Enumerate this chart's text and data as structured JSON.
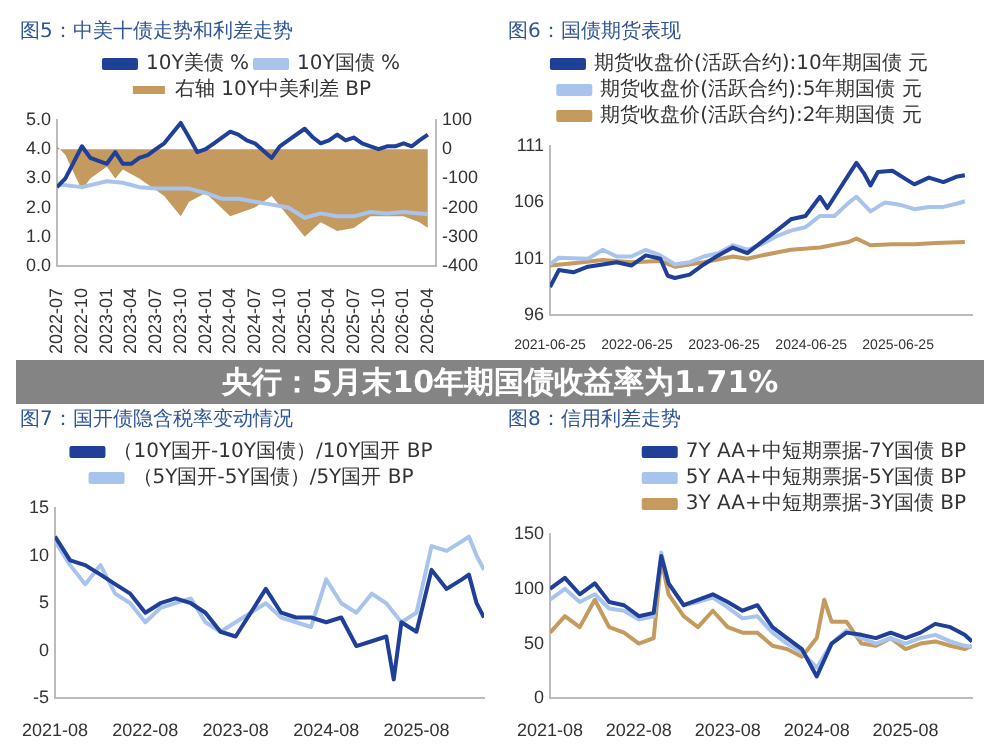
{
  "chart_data": [
    {
      "type": "line",
      "title": "图5：中美十债走势和利差走势",
      "legend": "top",
      "marker": "none",
      "line_style": "solid",
      "grid": false,
      "xlim": [
        "2022-07",
        "2026-05"
      ],
      "xticks": [
        "2022-07",
        "2022-10",
        "2023-01",
        "2023-04",
        "2023-07",
        "2023-10",
        "2024-01",
        "2024-04",
        "2024-07",
        "2024-10",
        "2025-01",
        "2025-04",
        "2025-07",
        "2025-10",
        "2026-01",
        "2026-04"
      ],
      "ylim": [
        0,
        5
      ],
      "yticks": [
        {
          "value": 0,
          "label": "0.0"
        },
        {
          "value": 1,
          "label": "1.0"
        },
        {
          "value": 2,
          "label": "2.0"
        },
        {
          "value": 3,
          "label": "3.0"
        },
        {
          "value": 4,
          "label": "4.0"
        },
        {
          "value": 5,
          "label": "5.0"
        }
      ],
      "y2lim": [
        -400,
        100
      ],
      "y2ticks": [
        -400,
        -300,
        -200,
        -100,
        0,
        100
      ],
      "series": [
        {
          "name": "右轴 10Y中美利差 BP",
          "type": "area",
          "axis": "y2",
          "color": "#c49a5e",
          "x": [
            "2022-07",
            "2022-08",
            "2022-10",
            "2022-11",
            "2023-01",
            "2023-02",
            "2023-03",
            "2023-05",
            "2023-07",
            "2023-08",
            "2023-10",
            "2023-11",
            "2024-01",
            "2024-04",
            "2024-07",
            "2024-09",
            "2024-11",
            "2025-01",
            "2025-03",
            "2025-05",
            "2025-07",
            "2025-09",
            "2025-11",
            "2026-01",
            "2026-03",
            "2026-04"
          ],
          "values": [
            10,
            -20,
            -140,
            -100,
            -60,
            -100,
            -70,
            -100,
            -140,
            -160,
            -230,
            -180,
            -150,
            -230,
            -200,
            -160,
            -230,
            -300,
            -250,
            -280,
            -270,
            -230,
            -230,
            -230,
            -250,
            -270
          ]
        },
        {
          "name": "10Y美债 %",
          "color": "#1f3f99",
          "x": [
            "2022-07",
            "2022-08",
            "2022-10",
            "2022-11",
            "2022-12",
            "2023-01",
            "2023-02",
            "2023-03",
            "2023-04",
            "2023-05",
            "2023-06",
            "2023-07",
            "2023-08",
            "2023-10",
            "2023-11",
            "2023-12",
            "2024-01",
            "2024-02",
            "2024-04",
            "2024-05",
            "2024-06",
            "2024-07",
            "2024-09",
            "2024-10",
            "2024-11",
            "2025-01",
            "2025-02",
            "2025-03",
            "2025-04",
            "2025-05",
            "2025-06",
            "2025-07",
            "2025-08",
            "2025-09",
            "2025-10",
            "2025-11",
            "2025-12",
            "2026-01",
            "2026-02",
            "2026-03",
            "2026-04"
          ],
          "values": [
            2.7,
            3.0,
            4.1,
            3.7,
            3.6,
            3.5,
            3.9,
            3.5,
            3.5,
            3.7,
            3.8,
            4.0,
            4.2,
            4.9,
            4.4,
            3.9,
            4.0,
            4.2,
            4.6,
            4.5,
            4.3,
            4.2,
            3.7,
            4.1,
            4.3,
            4.7,
            4.4,
            4.2,
            4.3,
            4.5,
            4.3,
            4.4,
            4.2,
            4.1,
            4.0,
            4.1,
            4.1,
            4.2,
            4.1,
            4.3,
            4.5
          ]
        },
        {
          "name": "10Y国债 %",
          "color": "#a9c4ec",
          "x": [
            "2022-07",
            "2022-10",
            "2023-01",
            "2023-03",
            "2023-05",
            "2023-07",
            "2023-09",
            "2023-11",
            "2024-01",
            "2024-03",
            "2024-05",
            "2024-07",
            "2024-09",
            "2024-11",
            "2025-01",
            "2025-03",
            "2025-05",
            "2025-07",
            "2025-09",
            "2025-11",
            "2026-01",
            "2026-03",
            "2026-04"
          ],
          "values": [
            2.8,
            2.7,
            2.9,
            2.85,
            2.7,
            2.65,
            2.65,
            2.65,
            2.5,
            2.3,
            2.3,
            2.2,
            2.1,
            2.0,
            1.65,
            1.8,
            1.7,
            1.7,
            1.85,
            1.8,
            1.85,
            1.8,
            1.78
          ]
        }
      ]
    },
    {
      "type": "line",
      "title": "图6：国债期货表现",
      "legend": "top",
      "marker": "none",
      "line_style": "solid",
      "grid": false,
      "xlim": [
        "2021-06-25",
        "2026-05-01"
      ],
      "xticks": [
        "2021-06-25",
        "2022-06-25",
        "2023-06-25",
        "2024-06-25",
        "2025-06-25"
      ],
      "ylim": [
        96,
        111
      ],
      "yticks": [
        96,
        101,
        106,
        111
      ],
      "series": [
        {
          "name": "期货收盘价(活跃合约):10年期国债 元",
          "color": "#1f3f99",
          "x": [
            "2021-06-25",
            "2021-08",
            "2021-10",
            "2021-12",
            "2022-02",
            "2022-04",
            "2022-06",
            "2022-08",
            "2022-10",
            "2022-11",
            "2022-12",
            "2023-02",
            "2023-04",
            "2023-06",
            "2023-08",
            "2023-10",
            "2023-12",
            "2024-02",
            "2024-04",
            "2024-06",
            "2024-08",
            "2024-09",
            "2024-10",
            "2024-12",
            "2025-01",
            "2025-02",
            "2025-03",
            "2025-04",
            "2025-06",
            "2025-08",
            "2025-09",
            "2025-11",
            "2026-01",
            "2026-03",
            "2026-04"
          ],
          "values": [
            98.5,
            100,
            99.8,
            100.3,
            100.5,
            100.7,
            100.4,
            101.3,
            101,
            99.5,
            99.3,
            99.6,
            100.5,
            101.3,
            102,
            101.5,
            102.5,
            103.5,
            104.5,
            104.8,
            106.5,
            105.5,
            106.5,
            108.5,
            109.5,
            108.6,
            107.5,
            108.7,
            108.8,
            108,
            107.6,
            108.2,
            107.8,
            108.3,
            108.4
          ]
        },
        {
          "name": "期货收盘价(活跃合约):5年期国债 元",
          "color": "#a9c4ec",
          "x": [
            "2021-06-25",
            "2021-08",
            "2021-12",
            "2022-02",
            "2022-04",
            "2022-06",
            "2022-08",
            "2022-10",
            "2022-12",
            "2023-02",
            "2023-04",
            "2023-06",
            "2023-08",
            "2023-10",
            "2023-12",
            "2024-02",
            "2024-04",
            "2024-06",
            "2024-08",
            "2024-10",
            "2024-12",
            "2025-01",
            "2025-03",
            "2025-05",
            "2025-07",
            "2025-09",
            "2025-11",
            "2026-01",
            "2026-03",
            "2026-04"
          ],
          "values": [
            100.5,
            101.1,
            101,
            101.8,
            101.2,
            101.2,
            101.8,
            101.3,
            100.5,
            100.7,
            101.2,
            101.5,
            102.2,
            101.8,
            102.3,
            103,
            103.5,
            103.8,
            104.8,
            104.8,
            106,
            106.5,
            105.2,
            106,
            105.8,
            105.4,
            105.6,
            105.6,
            105.9,
            106.1
          ]
        },
        {
          "name": "期货收盘价(活跃合约):2年期国债 元",
          "color": "#c49a5e",
          "x": [
            "2021-06-25",
            "2021-10",
            "2022-02",
            "2022-06",
            "2022-10",
            "2022-12",
            "2023-04",
            "2023-08",
            "2023-10",
            "2023-12",
            "2024-04",
            "2024-08",
            "2024-12",
            "2025-01",
            "2025-03",
            "2025-06",
            "2025-09",
            "2025-12",
            "2026-04"
          ],
          "values": [
            100.4,
            100.6,
            100.9,
            100.7,
            100.8,
            100.3,
            100.7,
            101.2,
            101,
            101.3,
            101.8,
            102,
            102.5,
            102.8,
            102.2,
            102.3,
            102.3,
            102.4,
            102.5
          ]
        }
      ]
    },
    {
      "type": "line",
      "title": "图7：国开债隐含税率变动情况",
      "legend": "top",
      "marker": "none",
      "line_style": "solid",
      "grid": false,
      "xlim": [
        "2021-08",
        "2026-05"
      ],
      "xticks": [
        "2021-08",
        "2022-08",
        "2023-08",
        "2024-08",
        "2025-08"
      ],
      "ylim": [
        -5,
        15
      ],
      "yticks": [
        -5,
        0,
        5,
        10,
        15
      ],
      "series": [
        {
          "name": "（10Y国开-10Y国债）/10Y国开 BP",
          "color": "#1f3f99",
          "x": [
            "2021-08",
            "2021-10",
            "2021-12",
            "2022-02",
            "2022-04",
            "2022-06",
            "2022-08",
            "2022-10",
            "2022-12",
            "2023-02",
            "2023-04",
            "2023-06",
            "2023-08",
            "2023-10",
            "2023-12",
            "2024-02",
            "2024-04",
            "2024-06",
            "2024-08",
            "2024-10",
            "2024-12",
            "2025-02",
            "2025-04",
            "2025-05",
            "2025-06",
            "2025-08",
            "2025-10",
            "2025-12",
            "2026-02",
            "2026-03",
            "2026-04",
            "2026-05"
          ],
          "values": [
            12,
            9.5,
            9,
            8,
            7,
            6,
            4,
            5,
            5.5,
            5,
            4,
            2,
            1.5,
            4,
            6.5,
            4,
            3.5,
            3.5,
            3,
            3.5,
            0.5,
            1,
            1.5,
            -3,
            3,
            2,
            8.5,
            6.5,
            7.5,
            8,
            5,
            3.5
          ]
        },
        {
          "name": "（5Y国开-5Y国债）/5Y国开 BP",
          "color": "#a9c4ec",
          "x": [
            "2021-08",
            "2021-10",
            "2021-12",
            "2022-02",
            "2022-04",
            "2022-06",
            "2022-08",
            "2022-10",
            "2022-12",
            "2023-02",
            "2023-04",
            "2023-06",
            "2023-08",
            "2023-10",
            "2023-12",
            "2024-02",
            "2024-04",
            "2024-06",
            "2024-08",
            "2024-10",
            "2024-12",
            "2025-02",
            "2025-04",
            "2025-06",
            "2025-08",
            "2025-10",
            "2025-12",
            "2026-02",
            "2026-03",
            "2026-04",
            "2026-05"
          ],
          "values": [
            11.5,
            9,
            7,
            9,
            6,
            5,
            3,
            4.5,
            5,
            5.5,
            3,
            2,
            3,
            4,
            5,
            3.5,
            3,
            2.5,
            7.5,
            5,
            4,
            6,
            5,
            3,
            4,
            11,
            10.5,
            11.5,
            12,
            10,
            8.5
          ]
        }
      ]
    },
    {
      "type": "line",
      "title": "图8：信用利差走势",
      "legend": "top right",
      "marker": "none",
      "line_style": "solid",
      "grid": false,
      "xlim": [
        "2021-08",
        "2026-05"
      ],
      "xticks": [
        "2021-08",
        "2022-08",
        "2023-08",
        "2024-08",
        "2025-08"
      ],
      "ylim": [
        0,
        150
      ],
      "yticks": [
        0,
        50,
        100,
        150
      ],
      "series": [
        {
          "name": "7Y AA+中短期票据-7Y国债 BP",
          "color": "#1f3f99",
          "x": [
            "2021-08",
            "2021-10",
            "2021-12",
            "2022-02",
            "2022-04",
            "2022-06",
            "2022-08",
            "2022-10",
            "2022-11",
            "2022-12",
            "2023-02",
            "2023-04",
            "2023-06",
            "2023-08",
            "2023-10",
            "2023-12",
            "2024-02",
            "2024-04",
            "2024-06",
            "2024-08",
            "2024-10",
            "2024-12",
            "2025-02",
            "2025-04",
            "2025-06",
            "2025-08",
            "2025-10",
            "2025-12",
            "2026-02",
            "2026-04",
            "2026-05"
          ],
          "values": [
            100,
            110,
            95,
            105,
            88,
            85,
            75,
            78,
            130,
            105,
            85,
            90,
            95,
            88,
            80,
            85,
            65,
            55,
            45,
            20,
            50,
            60,
            58,
            55,
            60,
            55,
            60,
            68,
            65,
            58,
            52
          ]
        },
        {
          "name": "5Y AA+中短期票据-5Y国债 BP",
          "color": "#a9c4ec",
          "x": [
            "2021-08",
            "2021-10",
            "2021-12",
            "2022-02",
            "2022-04",
            "2022-06",
            "2022-08",
            "2022-10",
            "2022-11",
            "2022-12",
            "2023-02",
            "2023-04",
            "2023-06",
            "2023-08",
            "2023-10",
            "2023-12",
            "2024-02",
            "2024-04",
            "2024-06",
            "2024-08",
            "2024-10",
            "2024-12",
            "2025-02",
            "2025-04",
            "2025-06",
            "2025-08",
            "2025-10",
            "2025-12",
            "2026-02",
            "2026-04",
            "2026-05"
          ],
          "values": [
            90,
            100,
            88,
            95,
            82,
            80,
            72,
            75,
            133,
            105,
            85,
            88,
            92,
            83,
            73,
            75,
            60,
            50,
            42,
            28,
            50,
            62,
            55,
            50,
            55,
            50,
            55,
            58,
            52,
            48,
            47
          ]
        },
        {
          "name": "3Y AA+中短期票据-3Y国债 BP",
          "color": "#c49a5e",
          "x": [
            "2021-08",
            "2021-10",
            "2021-12",
            "2022-02",
            "2022-04",
            "2022-06",
            "2022-08",
            "2022-10",
            "2022-11",
            "2022-12",
            "2023-02",
            "2023-04",
            "2023-06",
            "2023-08",
            "2023-10",
            "2023-12",
            "2024-02",
            "2024-04",
            "2024-06",
            "2024-08",
            "2024-09",
            "2024-10",
            "2024-12",
            "2025-02",
            "2025-04",
            "2025-06",
            "2025-08",
            "2025-10",
            "2025-12",
            "2026-02",
            "2026-04",
            "2026-05"
          ],
          "values": [
            60,
            75,
            65,
            90,
            65,
            60,
            50,
            55,
            127,
            95,
            75,
            65,
            80,
            65,
            60,
            60,
            48,
            45,
            38,
            55,
            90,
            70,
            70,
            50,
            48,
            55,
            45,
            50,
            52,
            48,
            45,
            48
          ]
        }
      ]
    },
    {
      "type": "other",
      "title": "央行：5月末10年期国债收益率为1.71%"
    }
  ]
}
